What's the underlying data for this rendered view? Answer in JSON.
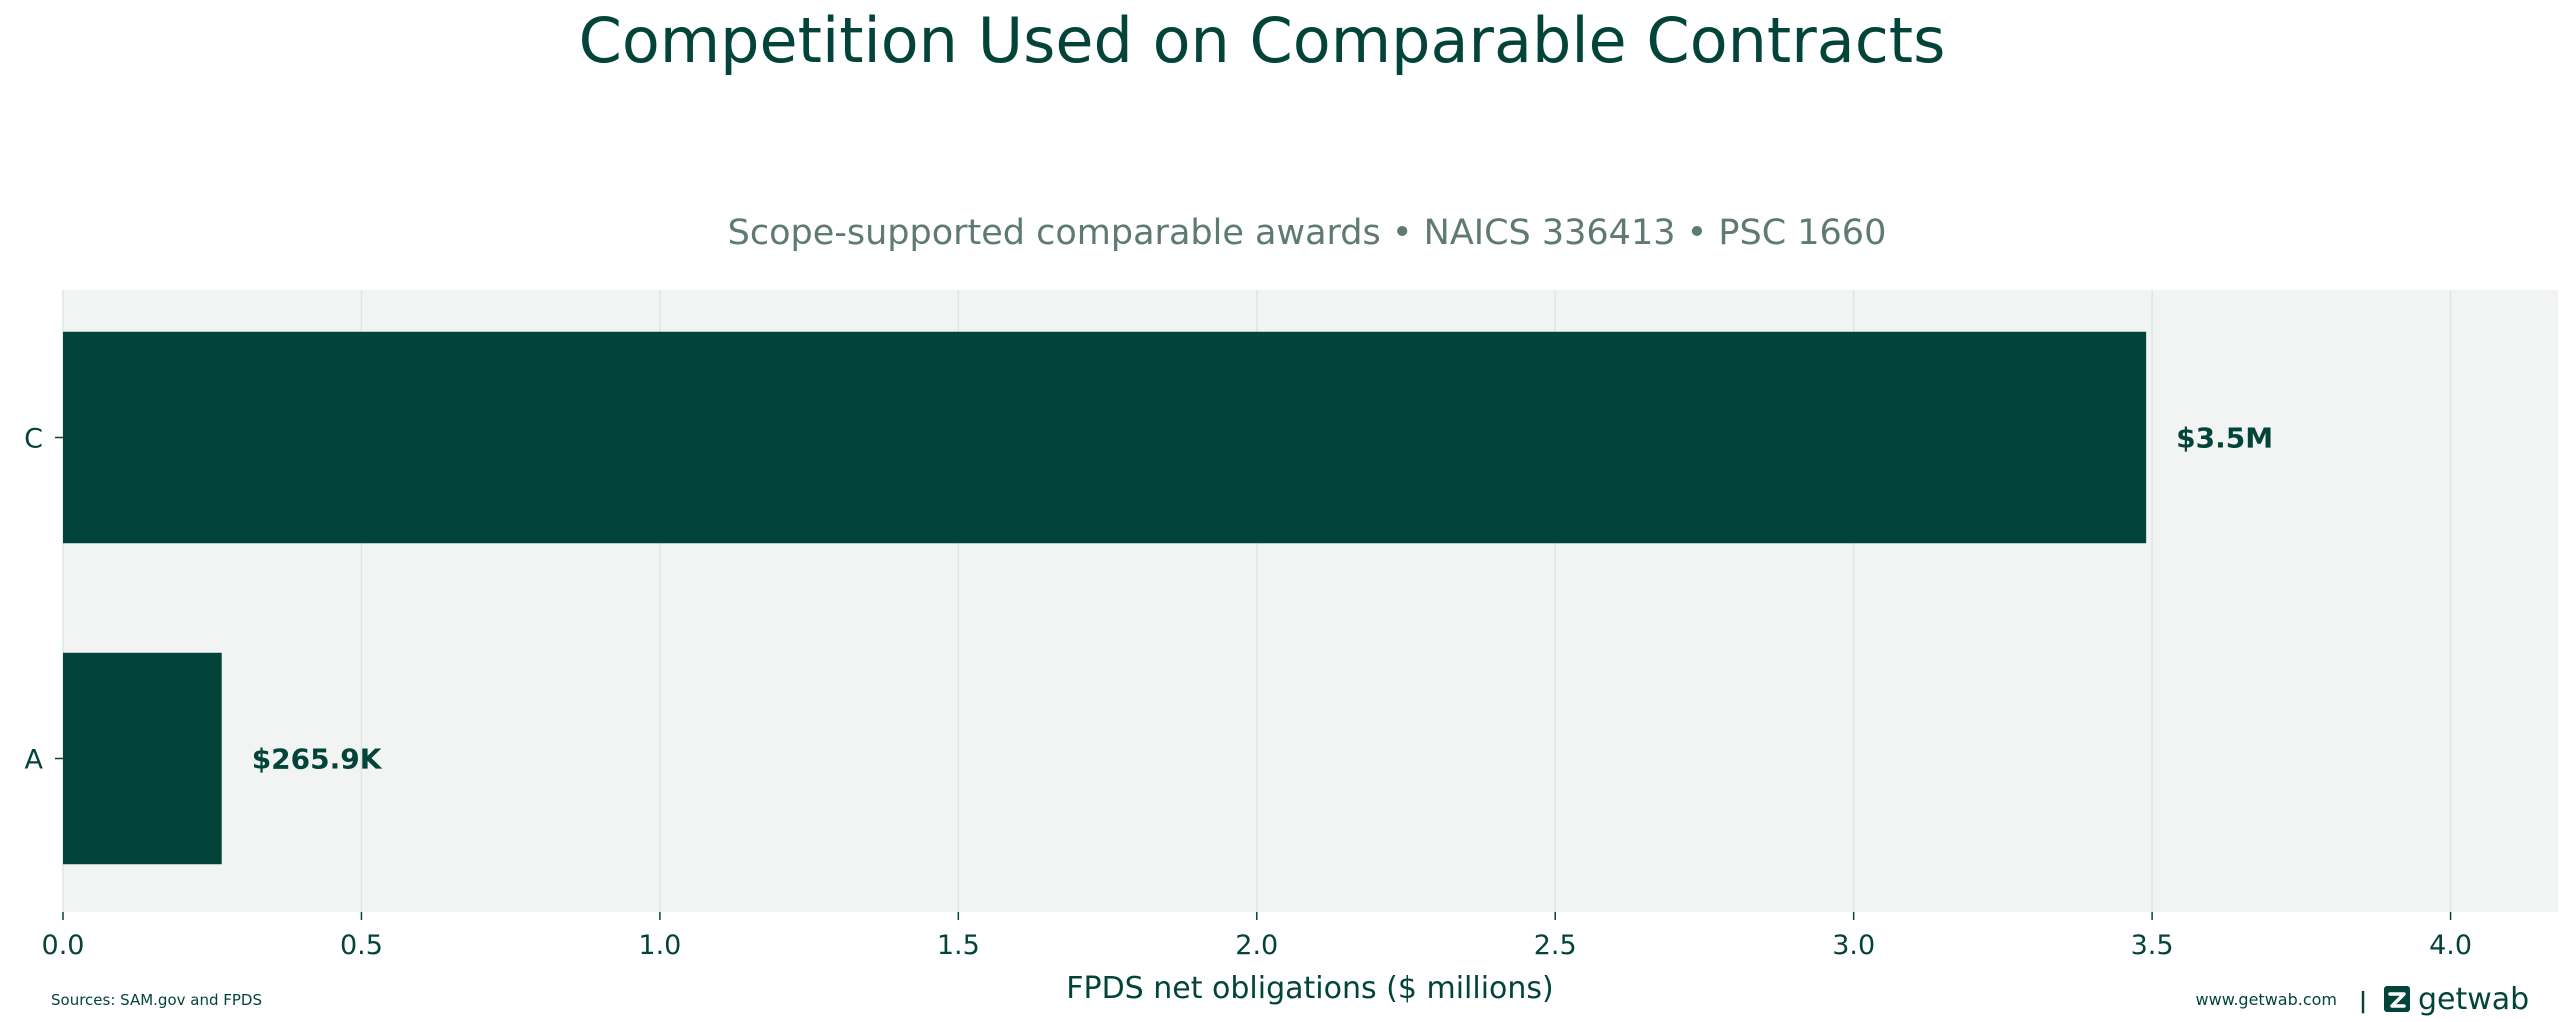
{
  "colors": {
    "primary": "#03443a",
    "subtitle": "#5f7a73",
    "plot_bg": "#f2f4f3",
    "grid": "#dbe7e3"
  },
  "footer": {
    "sources": "Sources: SAM.gov and FPDS",
    "website": "www.getwab.com",
    "separator": "|",
    "brand": "getwab"
  },
  "chart_data": {
    "type": "bar",
    "orientation": "horizontal",
    "title": "Competition Used on Comparable Contracts",
    "subtitle": "Scope-supported comparable awards • NAICS 336413 • PSC 1660",
    "xlabel": "FPDS net obligations ($ millions)",
    "ylabel": "",
    "categories": [
      "C",
      "A"
    ],
    "values": [
      3.49,
      0.2659
    ],
    "data_labels": [
      "$3.5M",
      "$265.9K"
    ],
    "xlim": [
      0,
      4.18
    ],
    "xticks": [
      0.0,
      0.5,
      1.0,
      1.5,
      2.0,
      2.5,
      3.0,
      3.5,
      4.0
    ],
    "xtick_labels": [
      "0.0",
      "0.5",
      "1.0",
      "1.5",
      "2.0",
      "2.5",
      "3.0",
      "3.5",
      "4.0"
    ],
    "grid": true,
    "legend": "none"
  }
}
